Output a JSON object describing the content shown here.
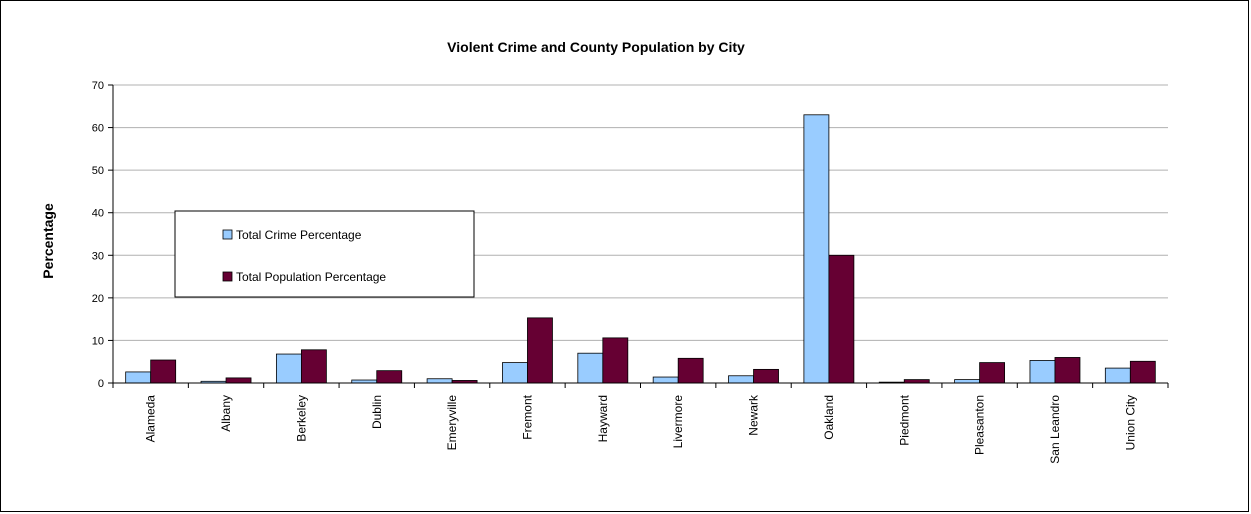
{
  "chart_data": {
    "type": "bar",
    "title": "Violent Crime and County Population by City",
    "ylabel": "Percentage",
    "xlabel": "",
    "ylim": [
      0,
      70
    ],
    "yticks": [
      0,
      10,
      20,
      30,
      40,
      50,
      60,
      70
    ],
    "grid": true,
    "legend_position": "left",
    "categories": [
      "Alameda",
      "Albany",
      "Berkeley",
      "Dublin",
      "Emeryville",
      "Fremont",
      "Hayward",
      "Livermore",
      "Newark",
      "Oakland",
      "Piedmont",
      "Pleasanton",
      "San Leandro",
      "Union City"
    ],
    "series": [
      {
        "name": "Total Crime Percentage",
        "color": "#99CCFF",
        "values": [
          2.6,
          0.4,
          6.8,
          0.7,
          1.0,
          4.8,
          7.0,
          1.4,
          1.7,
          63.0,
          0.2,
          0.8,
          5.3,
          3.5
        ]
      },
      {
        "name": "Total Population Percentage",
        "color": "#660033",
        "values": [
          5.4,
          1.2,
          7.8,
          2.9,
          0.6,
          15.3,
          10.6,
          5.8,
          3.2,
          30.0,
          0.8,
          4.8,
          6.0,
          5.1
        ]
      }
    ]
  }
}
